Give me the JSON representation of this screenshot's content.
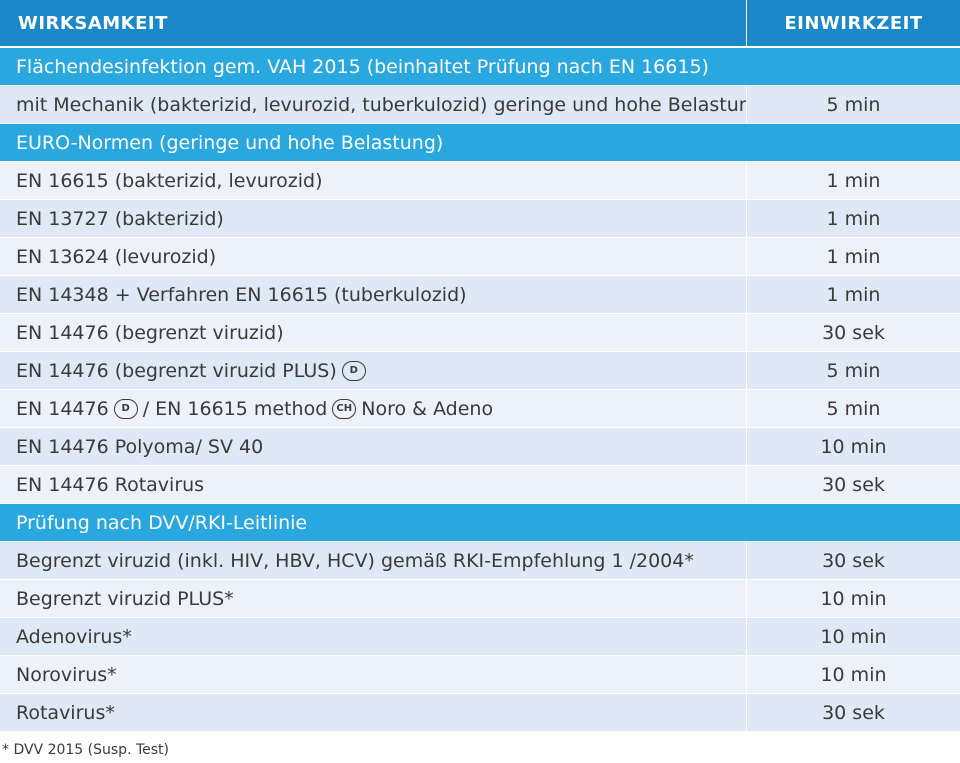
{
  "header": {
    "col1": "WIRKSAMKEIT",
    "col2": "EINWIRKZEIT"
  },
  "sections": [
    {
      "title": "Flächendesinfektion gem. VAH 2015 (beinhaltet Prüfung nach EN 16615)",
      "rows": [
        {
          "label": "mit Mechanik (bakterizid, levurozid, tuberkulozid) geringe und hohe Belastung",
          "time": "5 min"
        }
      ]
    },
    {
      "title": "EURO-Normen (geringe und hohe Belastung)",
      "rows": [
        {
          "label": "EN 16615 (bakterizid, levurozid)",
          "time": "1 min"
        },
        {
          "label": "EN 13727 (bakterizid)",
          "time": "1 min"
        },
        {
          "label": "EN 13624 (levurozid)",
          "time": "1 min"
        },
        {
          "label": "EN 14348 + Verfahren EN 16615 (tuberkulozid)",
          "time": "1 min"
        },
        {
          "label": "EN 14476 (begrenzt viruzid)",
          "time": "30 sek"
        },
        {
          "parts": [
            {
              "text": "EN 14476 (begrenzt viruzid PLUS)"
            },
            {
              "badge": "D"
            }
          ],
          "time": "5 min"
        },
        {
          "parts": [
            {
              "text": "EN 14476"
            },
            {
              "badge": "D"
            },
            {
              "text": "/ EN 16615 method"
            },
            {
              "badge": "CH"
            },
            {
              "text": "Noro & Adeno"
            }
          ],
          "time": "5 min"
        },
        {
          "label": "EN 14476 Polyoma/ SV 40",
          "time": "10 min"
        },
        {
          "label": "EN 14476 Rotavirus",
          "time": "30 sek"
        }
      ]
    },
    {
      "title": "Prüfung nach DVV/RKI-Leitlinie",
      "rows": [
        {
          "label": "Begrenzt viruzid (inkl. HIV, HBV, HCV) gemäß RKI-Empfehlung 1 /2004*",
          "time": "30 sek"
        },
        {
          "label": "Begrenzt viruzid PLUS*",
          "time": "10 min"
        },
        {
          "label": "Adenovirus*",
          "time": "10 min"
        },
        {
          "label": "Norovirus*",
          "time": "10 min"
        },
        {
          "label": "Rotavirus*",
          "time": "30 sek"
        }
      ]
    }
  ],
  "footnote": "* DVV 2015 (Susp. Test)",
  "colors": {
    "header": "#1a88c9",
    "section": "#29a7df",
    "row_even": "#dfe8f5",
    "row_odd": "#edf2fa",
    "text": "#3a3a3a"
  }
}
